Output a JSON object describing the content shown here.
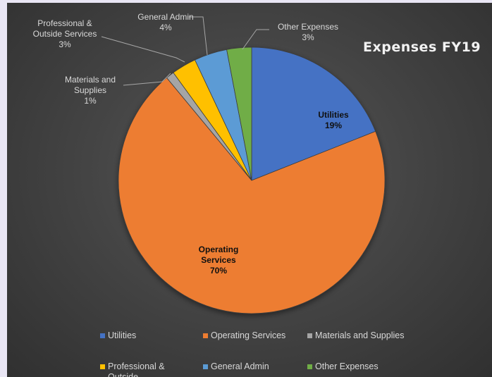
{
  "chart_data": {
    "type": "pie",
    "title": "Expenses FY19",
    "slices": [
      {
        "label": "Utilities",
        "percent_label": "19%",
        "value": 19,
        "color": "#4472c4"
      },
      {
        "label": "Operating Services",
        "percent_label": "70%",
        "value": 70,
        "color": "#ed7d31"
      },
      {
        "label": "Materials and Supplies",
        "percent_label": "1%",
        "value": 1,
        "color": "#a5a5a5"
      },
      {
        "label": "Professional & Outside Services",
        "percent_label": "3%",
        "value": 3,
        "color": "#ffc000"
      },
      {
        "label": "General Admin",
        "percent_label": "4%",
        "value": 4,
        "color": "#5b9bd5"
      },
      {
        "label": "Other Expenses",
        "percent_label": "3%",
        "value": 3,
        "color": "#70ad47"
      }
    ],
    "legend_position": "bottom"
  }
}
